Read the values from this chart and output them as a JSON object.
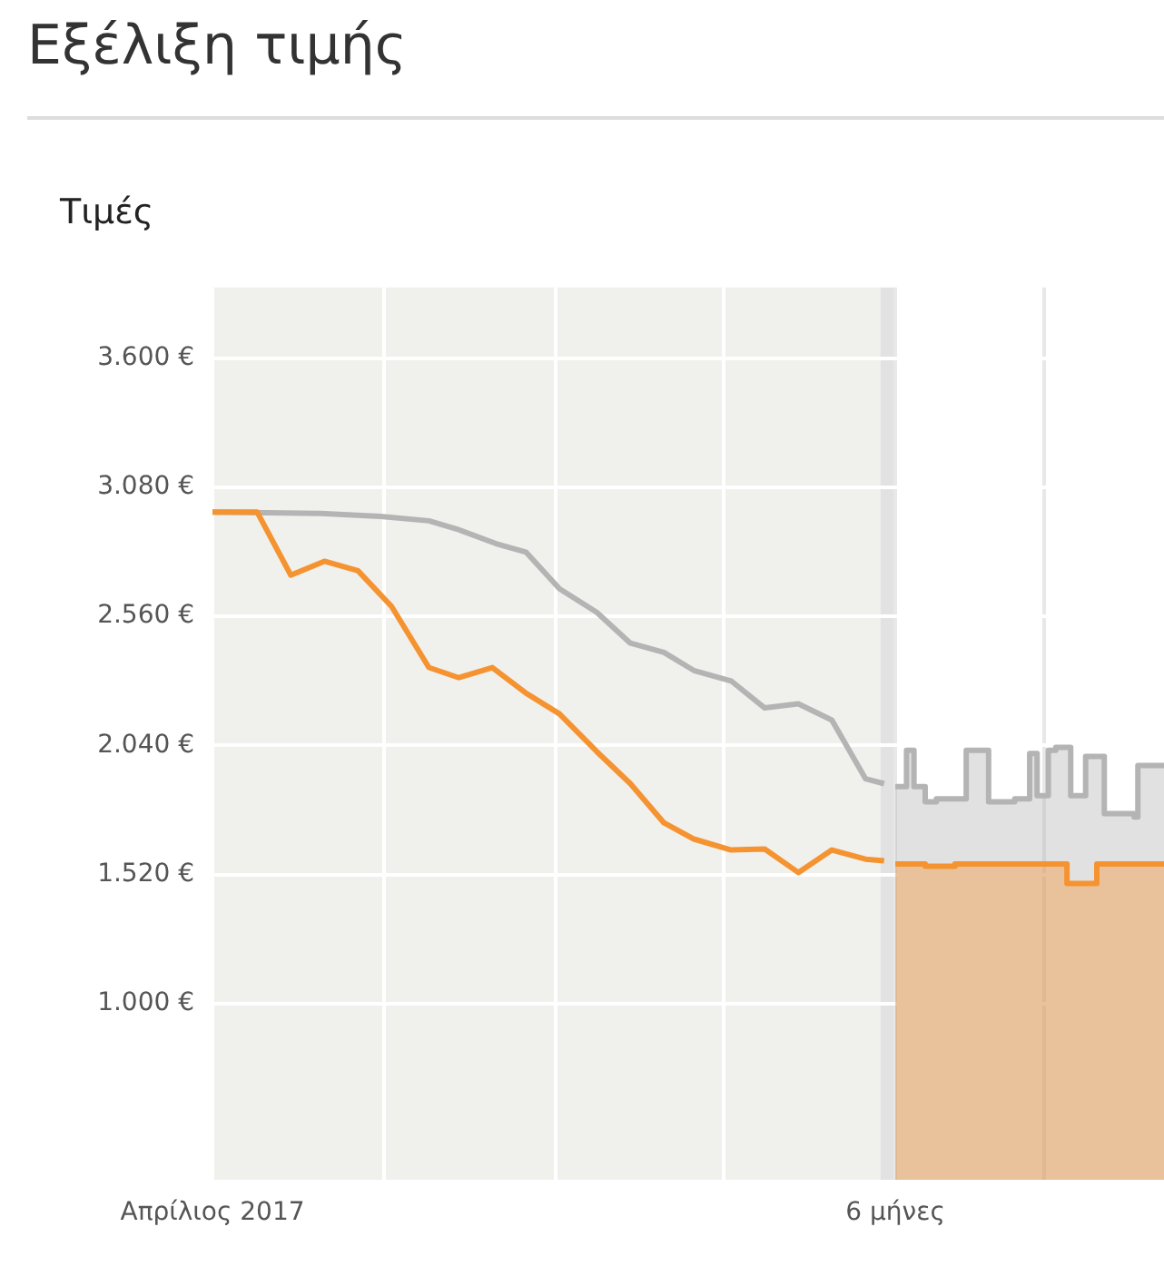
{
  "chart_data": {
    "type": "line",
    "title": "Εξέλιξη τιμής",
    "ylabel": "Τιμές",
    "series": [
      {
        "type": "line",
        "color": "#f59331",
        "x": [
          "2017-04-01",
          "2017-04-13",
          "2017-04-22",
          "2017-05-01",
          "2017-05-10",
          "2017-05-19",
          "2017-05-29",
          "2017-06-06",
          "2017-06-15",
          "2017-06-24",
          "2017-07-03",
          "2017-07-13",
          "2017-07-22",
          "2017-07-31",
          "2017-08-08",
          "2017-08-18",
          "2017-08-27",
          "2017-09-05",
          "2017-09-14",
          "2017-09-23",
          "2017-09-28"
        ],
        "values": [
          2980,
          2980,
          2726,
          2782,
          2744,
          2600,
          2354,
          2313,
          2354,
          2251,
          2167,
          2015,
          1886,
          1728,
          1663,
          1619,
          1623,
          1528,
          1619,
          1582,
          1575
        ]
      },
      {
        "type": "area",
        "color": "#f59331",
        "x": [
          "2017-10-01",
          "2017-10-09",
          "2017-10-09",
          "2017-10-17",
          "2017-10-17",
          "2017-11-16",
          "2017-11-16",
          "2017-11-24",
          "2017-11-24",
          "2017-12-12"
        ],
        "values": [
          1562,
          1562,
          1553,
          1553,
          1562,
          1562,
          1484,
          1484,
          1562,
          1562
        ]
      },
      {
        "type": "line",
        "color": "#b4b4b4",
        "x": [
          "2017-04-01",
          "2017-04-30",
          "2017-05-16",
          "2017-05-29",
          "2017-06-06",
          "2017-06-16",
          "2017-06-24",
          "2017-07-03",
          "2017-07-13",
          "2017-07-22",
          "2017-07-31",
          "2017-08-08",
          "2017-08-18",
          "2017-08-27",
          "2017-09-05",
          "2017-09-14",
          "2017-09-23",
          "2017-09-28"
        ],
        "values": [
          2980,
          2975,
          2963,
          2945,
          2909,
          2853,
          2819,
          2671,
          2576,
          2452,
          2415,
          2342,
          2300,
          2191,
          2208,
          2142,
          1906,
          1886
        ]
      },
      {
        "type": "area",
        "color": "#b4b4b4",
        "x": [
          "2017-10-01",
          "2017-10-04",
          "2017-10-04",
          "2017-10-06",
          "2017-10-06",
          "2017-10-09",
          "2017-10-09",
          "2017-10-12",
          "2017-10-12",
          "2017-10-20",
          "2017-10-20",
          "2017-10-26",
          "2017-10-26",
          "2017-11-02",
          "2017-11-02",
          "2017-11-06",
          "2017-11-06",
          "2017-11-08",
          "2017-11-08",
          "2017-11-11",
          "2017-11-11",
          "2017-11-13",
          "2017-11-13",
          "2017-11-17",
          "2017-11-17",
          "2017-11-21",
          "2017-11-21",
          "2017-11-26",
          "2017-11-26",
          "2017-12-04",
          "2017-12-04",
          "2017-12-05",
          "2017-12-05",
          "2017-12-12"
        ],
        "values": [
          1874,
          1874,
          2020,
          2020,
          1874,
          1874,
          1813,
          1813,
          1825,
          1825,
          2020,
          2020,
          1813,
          1813,
          1825,
          1825,
          2008,
          2008,
          1838,
          1838,
          2020,
          2020,
          2032,
          2032,
          1838,
          1838,
          1996,
          1996,
          1765,
          1765,
          1752,
          1752,
          1959,
          1959
        ]
      }
    ],
    "xlim": [
      "2017-04-01",
      "2017-12-12"
    ],
    "xticks": [
      {
        "value": "2017-04-01",
        "label": "Απρίλιος 2017"
      },
      {
        "value": "2017-05-17",
        "label": null
      },
      {
        "value": "2017-07-02",
        "label": null
      },
      {
        "value": "2017-08-16",
        "label": null
      },
      {
        "value": "2017-10-01",
        "label": "6 μήνες"
      },
      {
        "value": "2017-11-10",
        "label": null
      }
    ],
    "ylim": [
      290,
      3885
    ],
    "yticks": [
      {
        "value": 1000,
        "label": "1.000 €"
      },
      {
        "value": 1520,
        "label": "1.520 €"
      },
      {
        "value": 2040,
        "label": "2.040 €"
      },
      {
        "value": 2560,
        "label": "2.560 €"
      },
      {
        "value": 3080,
        "label": "3.080 €"
      },
      {
        "value": 3600,
        "label": "3.600 €"
      }
    ],
    "grid": true,
    "bands": [
      {
        "axis": "x",
        "from": "2017-04-01",
        "to": "2017-09-27",
        "color": "#f0f0ec"
      },
      {
        "axis": "x",
        "from": "2017-09-27",
        "to": "2017-10-01",
        "color": "#e2e2e2"
      }
    ]
  }
}
